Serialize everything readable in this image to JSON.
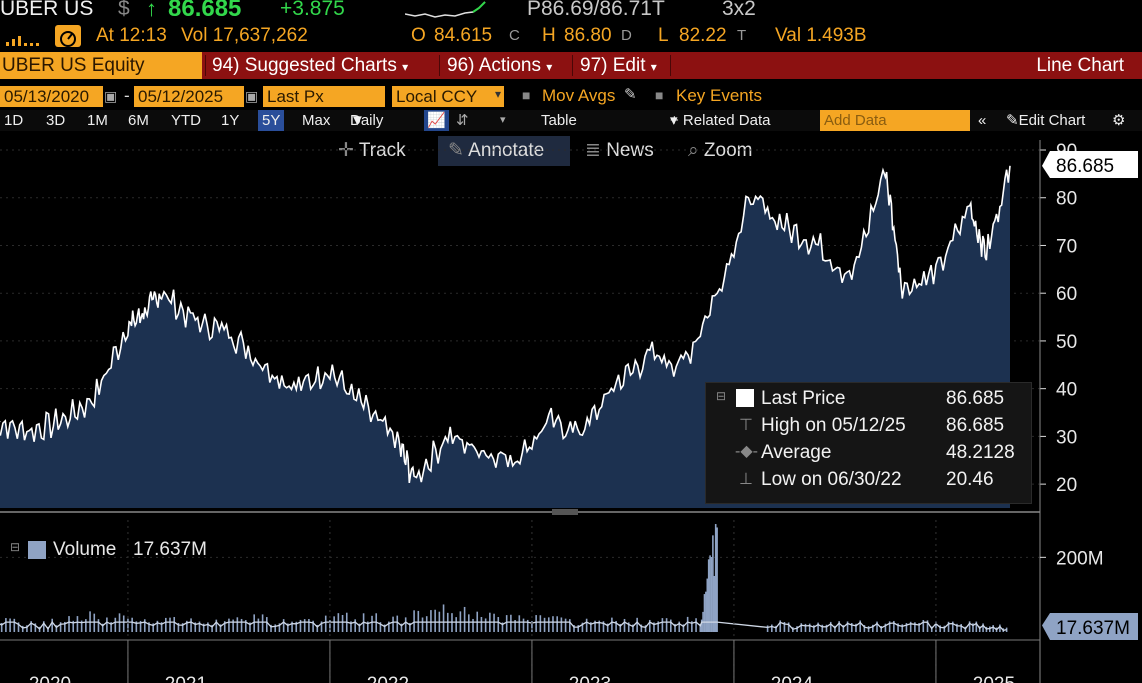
{
  "ticker_line": {
    "ticker": "UBER US",
    "currency_symbol": "$",
    "arrow": "↑",
    "last": "86.685",
    "change": "+3.875",
    "bid_ask": "P86.69/86.71T",
    "size": "3x2"
  },
  "stats_line": {
    "time": "At 12:13",
    "volume": "Vol 17,637,262",
    "open_label": "O",
    "open": "84.615",
    "open_src": "C",
    "high_label": "H",
    "high": "86.80",
    "high_src": "D",
    "low_label": "L",
    "low": "82.22",
    "low_src": "T",
    "val": "Val 1.493B"
  },
  "function_bar": {
    "security": "UBER US Equity",
    "suggested": "94) Suggested Charts",
    "actions": "96) Actions",
    "edit": "97) Edit",
    "chart_type": "Line Chart"
  },
  "controls": {
    "start_date": "05/13/2020",
    "dash": "-",
    "end_date": "05/12/2025",
    "price_field": "Last Px",
    "currency": "Local CCY",
    "mov_avgs": "Mov Avgs",
    "key_events": "Key Events"
  },
  "timebar": {
    "ranges": [
      "1D",
      "3D",
      "1M",
      "6M",
      "YTD",
      "1Y",
      "5Y",
      "Max"
    ],
    "active_range": "5Y",
    "frequency": "Daily",
    "table": "Table",
    "related": "+ Related Data",
    "add_data_placeholder": "Add Data",
    "edit_chart": "Edit Chart"
  },
  "chart_tools": {
    "track": "Track",
    "annotate": "Annotate",
    "news": "News",
    "zoom": "Zoom"
  },
  "legend": {
    "last_price_label": "Last Price",
    "last_price": "86.685",
    "high_label": "High on 05/12/25",
    "high": "86.685",
    "average_label": "Average",
    "average": "48.2128",
    "low_label": "Low on 06/30/22",
    "low": "20.46"
  },
  "volume_legend": {
    "label": "Volume",
    "value": "17.637M"
  },
  "colors": {
    "amber": "#f5a623",
    "red_bar": "#8c1111",
    "area_fill": "#1c3150",
    "price_line": "#ffffff",
    "up_green": "#32d74b"
  },
  "chart_data": [
    {
      "type": "area",
      "series": [
        {
          "name": "Last Price",
          "x": [
            "2020-05",
            "2020-07",
            "2020-09",
            "2020-11",
            "2021-01",
            "2021-02",
            "2021-03",
            "2021-05",
            "2021-07",
            "2021-09",
            "2021-11",
            "2022-01",
            "2022-03",
            "2022-05",
            "2022-06",
            "2022-08",
            "2022-10",
            "2022-12",
            "2023-02",
            "2023-04",
            "2023-06",
            "2023-08",
            "2023-10",
            "2023-12",
            "2024-02",
            "2024-04",
            "2024-06",
            "2024-08",
            "2024-10",
            "2024-11",
            "2025-01",
            "2025-03",
            "2025-04",
            "2025-05"
          ],
          "values": [
            33,
            31,
            33,
            38,
            53,
            56,
            60,
            54,
            52,
            45,
            40,
            44,
            36,
            29,
            21,
            30,
            27,
            25,
            33,
            31,
            41,
            47,
            45,
            60,
            80,
            74,
            70,
            63,
            86,
            61,
            64,
            78,
            68,
            86.685
          ]
        }
      ],
      "ylim": [
        15,
        90
      ],
      "y_ticks": [
        "20",
        "30",
        "40",
        "50",
        "60",
        "70",
        "80",
        "90"
      ],
      "last_tag": "86.685"
    },
    {
      "type": "bar",
      "series": [
        {
          "name": "Volume",
          "note": "daily volume in shares, representative sample",
          "x": [
            "2020-05",
            "2020-08",
            "2020-11",
            "2021-02",
            "2021-05",
            "2021-08",
            "2021-11",
            "2022-02",
            "2022-05",
            "2022-08",
            "2022-11",
            "2023-02",
            "2023-05",
            "2023-08",
            "2023-11",
            "2023-12",
            "2024-03",
            "2024-06",
            "2024-09",
            "2024-12",
            "2025-03",
            "2025-05"
          ],
          "values": [
            30000000,
            25000000,
            45000000,
            35000000,
            28000000,
            40000000,
            30000000,
            45000000,
            38000000,
            70000000,
            35000000,
            40000000,
            28000000,
            35000000,
            30000000,
            280000000,
            28000000,
            22000000,
            25000000,
            30000000,
            25000000,
            17637262
          ]
        }
      ],
      "ylim": [
        0,
        300000000
      ],
      "y_ticks": [
        "200M"
      ],
      "last_tag": "17.637M"
    }
  ],
  "x_axis_years": [
    "2020",
    "2021",
    "2022",
    "2023",
    "2024",
    "2025"
  ]
}
